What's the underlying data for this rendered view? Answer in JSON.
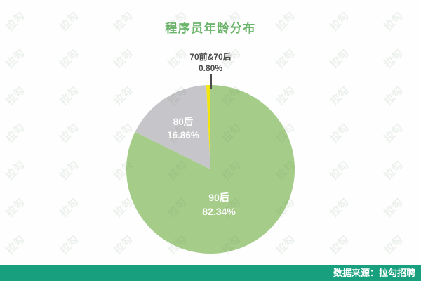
{
  "chart_data": {
    "type": "pie",
    "title": "程序员年龄分布",
    "start_angle_deg": -90,
    "direction": "clockwise",
    "legend": "none",
    "labels_on_slices": true,
    "slices": [
      {
        "label": "90后",
        "value": 82.34,
        "display": "82.34%",
        "color": "#a5cd89"
      },
      {
        "label": "80后",
        "value": 16.86,
        "display": "16.86%",
        "color": "#c6c5c9"
      },
      {
        "label": "70前&70后",
        "value": 0.8,
        "display": "0.80%",
        "color": "#f2e60f"
      }
    ]
  },
  "colors": {
    "title_green": "#6bb46b",
    "slice_green": "#a5cd89",
    "slice_gray": "#c6c5c9",
    "slice_yellow": "#f2e60f",
    "callout_text": "#4a4a4a",
    "footer_bg": "#189f7d",
    "footer_text": "#ffffff"
  },
  "watermark": {
    "text": "拉勾",
    "color": "#52704f",
    "opacity": "0.09"
  },
  "footer": {
    "text": "数据来源：拉勾招聘"
  }
}
